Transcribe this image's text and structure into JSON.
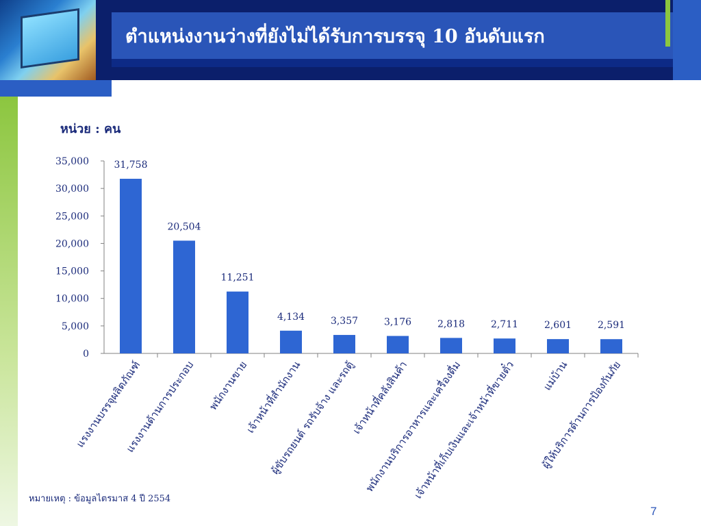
{
  "title": "ตำแหน่งงานว่างที่ยังไม่ได้รับการบรรจุ 10 อันดับแรก",
  "unit_label": "หน่วย : คน",
  "footnote": "หมายเหตุ : ข้อมูลไตรมาส 4 ปี 2554",
  "page_number": "7",
  "colors": {
    "bar": "#2e66d3",
    "banner": "#0b1f6b",
    "title_band": "#2a55b8",
    "accent_green": "#8cc63f"
  },
  "chart_data": {
    "type": "bar",
    "categories": [
      "แรงงานบรรจุผลิตภัณฑ์",
      "แรงงานด้านการประกอบ",
      "พนักงานขาย",
      "เจ้าหน้าที่สำนักงาน",
      "ผู้ขับรถยนต์ รถรับจ้าง และรถตู้",
      "เจ้าหน้าที่คลังสินค้า",
      "พนักงานบริการอาหารและเครื่องดื่ม",
      "เจ้าหน้าที่เก็บเงินและเจ้าหน้าที่ขายตั๋ว",
      "แม่บ้าน",
      "ผู้ให้บริการด้านการป้องกันภัย"
    ],
    "values": [
      31758,
      20504,
      11251,
      4134,
      3357,
      3176,
      2818,
      2711,
      2601,
      2591
    ],
    "value_labels": [
      "31,758",
      "20,504",
      "11,251",
      "4,134",
      "3,357",
      "3,176",
      "2,818",
      "2,711",
      "2,601",
      "2,591"
    ],
    "yticks": [
      0,
      5000,
      10000,
      15000,
      20000,
      25000,
      30000,
      35000
    ],
    "ytick_labels": [
      "0",
      "5,000",
      "10,000",
      "15,000",
      "20,000",
      "25,000",
      "30,000",
      "35,000"
    ],
    "ylim": [
      0,
      35000
    ],
    "grid": false,
    "legend": "none"
  }
}
